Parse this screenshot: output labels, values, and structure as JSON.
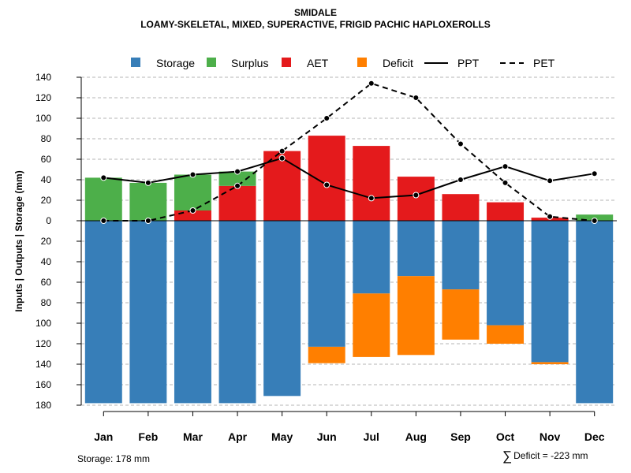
{
  "title": "SMIDALE",
  "subtitle": "LOAMY-SKELETAL, MIXED, SUPERACTIVE, FRIGID PACHIC HAPLOXEROLLS",
  "footer": {
    "storage_text": "Storage: 178 mm",
    "sigma": "∑",
    "deficit_text": "Deficit = -223 mm"
  },
  "colors": {
    "storage": "#377EB8",
    "surplus": "#4DAF4A",
    "aet": "#E41A1C",
    "deficit": "#FF7F00",
    "line": "#000000",
    "grid": "#b4b4b4"
  },
  "chart_data": {
    "type": "bar",
    "ylabel": "Inputs | Outputs | Storage    (mm)",
    "ylim": [
      -180,
      140
    ],
    "yticks": [
      140,
      120,
      100,
      80,
      60,
      40,
      20,
      0,
      -20,
      -40,
      -60,
      -80,
      -100,
      -120,
      -140,
      -160,
      -180
    ],
    "ytick_labels": [
      "140",
      "120",
      "100",
      "80",
      "60",
      "40",
      "20",
      "0",
      "20",
      "40",
      "60",
      "80",
      "100",
      "120",
      "140",
      "160",
      "180"
    ],
    "categories": [
      "Jan",
      "Feb",
      "Mar",
      "Apr",
      "May",
      "Jun",
      "Jul",
      "Aug",
      "Sep",
      "Oct",
      "Nov",
      "Dec"
    ],
    "legend": [
      "Storage",
      "Surplus",
      "AET",
      "Deficit",
      "PPT",
      "PET"
    ],
    "stacked_positive": [
      {
        "name": "AET",
        "values": [
          0,
          0,
          10,
          34,
          68,
          83,
          73,
          43,
          26,
          18,
          3,
          0
        ]
      },
      {
        "name": "Surplus",
        "values": [
          42,
          37,
          35,
          14,
          0,
          0,
          0,
          0,
          0,
          0,
          0,
          6
        ]
      }
    ],
    "stacked_negative": [
      {
        "name": "Storage",
        "values": [
          178,
          178,
          178,
          178,
          171,
          123,
          71,
          54,
          67,
          102,
          138,
          178
        ]
      },
      {
        "name": "Deficit",
        "values": [
          0,
          0,
          0,
          0,
          0,
          16,
          62,
          77,
          49,
          18,
          2,
          0
        ]
      }
    ],
    "lines": [
      {
        "name": "PPT",
        "style": "solid",
        "values": [
          42,
          37,
          45,
          48,
          61,
          35,
          22,
          25,
          40,
          53,
          39,
          46
        ]
      },
      {
        "name": "PET",
        "style": "dashed",
        "values": [
          0,
          0,
          10,
          34,
          68,
          100,
          134,
          120,
          75,
          37,
          4,
          0
        ]
      }
    ]
  }
}
